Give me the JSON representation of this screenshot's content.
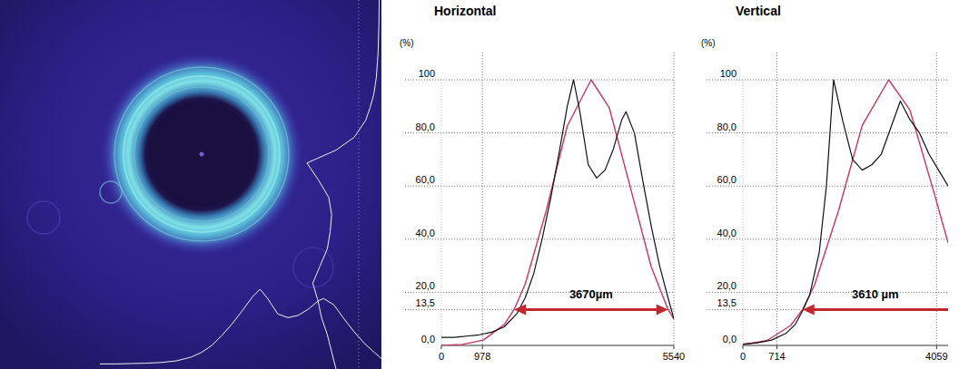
{
  "chart_data": [
    {
      "type": "line",
      "title": "Horizontal",
      "ylabel": "(%)",
      "xlim": [
        0,
        5540
      ],
      "xticks": [
        0,
        978,
        5540
      ],
      "ylim": [
        0,
        100
      ],
      "yticks": [
        {
          "value": 0,
          "label": "0,0"
        },
        {
          "value": 13.5,
          "label": "13,5"
        },
        {
          "value": 20,
          "label": "20,0"
        },
        {
          "value": 40,
          "label": "40,0"
        },
        {
          "value": 60,
          "label": "60,0"
        },
        {
          "value": 80,
          "label": "80,0"
        },
        100
      ],
      "grid": true,
      "series": [
        {
          "color": "#111111",
          "x": [
            0,
            300,
            600,
            900,
            1200,
            1500,
            1800,
            2000,
            2200,
            2400,
            2600,
            2800,
            3000,
            3150,
            3300,
            3500,
            3700,
            3900,
            4100,
            4300,
            4400,
            4600,
            4800,
            5000,
            5200,
            5400,
            5540
          ],
          "values": [
            3,
            3,
            3.5,
            4,
            5,
            7,
            12,
            18,
            27,
            40,
            55,
            72,
            90,
            100,
            88,
            68,
            63,
            66,
            74,
            85,
            88,
            80,
            62,
            45,
            30,
            18,
            10
          ]
        },
        {
          "color": "#c8346a",
          "x": [
            0,
            500,
            1000,
            1500,
            1733,
            2000,
            2500,
            3000,
            3568,
            4000,
            4500,
            5000,
            5403,
            5540
          ],
          "values": [
            0.05,
            0.4,
            2,
            7.9,
            13.5,
            23.2,
            50.8,
            82.6,
            100,
            89.5,
            59.7,
            29.6,
            13.5,
            9.9
          ]
        }
      ],
      "annotations": [
        {
          "text": "3670µm",
          "x": [
            1733,
            5403
          ],
          "y": 13.5
        }
      ]
    },
    {
      "type": "line",
      "title": "Vertical",
      "ylabel": "(%)",
      "xlim": [
        0,
        4300
      ],
      "xticks": [
        0,
        714,
        4059
      ],
      "ylim": [
        0,
        100
      ],
      "yticks": [
        {
          "value": 0,
          "label": "0,0"
        },
        {
          "value": 13.5,
          "label": "13,5"
        },
        {
          "value": 20,
          "label": "20,0"
        },
        {
          "value": 40,
          "label": "40,0"
        },
        {
          "value": 60,
          "label": "60,0"
        },
        {
          "value": 80,
          "label": "80,0"
        },
        100
      ],
      "grid": true,
      "series": [
        {
          "color": "#111111",
          "x": [
            0,
            300,
            600,
            900,
            1100,
            1250,
            1400,
            1600,
            1750,
            1900,
            2100,
            2300,
            2500,
            2700,
            2900,
            3100,
            3300,
            3500,
            3700,
            3900,
            4100,
            4300
          ],
          "values": [
            0.5,
            1,
            2,
            4.5,
            8,
            13,
            19,
            35,
            60,
            100,
            84,
            70,
            66,
            68,
            72,
            82,
            92,
            85,
            80,
            72,
            66,
            60
          ]
        },
        {
          "color": "#c8346a",
          "x": [
            0,
            500,
            1000,
            1250,
            1500,
            2000,
            2500,
            3055,
            3500,
            4000,
            4300
          ],
          "values": [
            0.33,
            1.8,
            7.5,
            13.5,
            22.7,
            50.5,
            82.8,
            100,
            88.6,
            57.8,
            38.6
          ]
        }
      ],
      "annotations": [
        {
          "text": "3610 µm",
          "x": [
            1250,
            4860
          ],
          "y": 13.5
        }
      ]
    }
  ]
}
